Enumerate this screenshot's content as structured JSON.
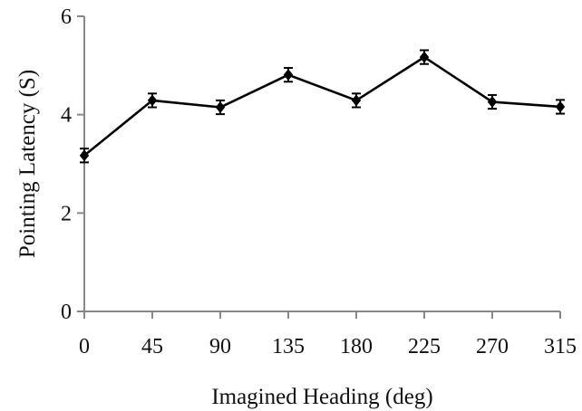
{
  "chart_data": {
    "type": "line",
    "title": "",
    "xlabel": "Imagined Heading (deg)",
    "ylabel": "Pointing Latency (S)",
    "x": [
      0,
      45,
      90,
      135,
      180,
      225,
      270,
      315
    ],
    "xticks": [
      "0",
      "45",
      "90",
      "135",
      "180",
      "225",
      "270",
      "315"
    ],
    "ylim": [
      0,
      6
    ],
    "yticks": [
      "0",
      "2",
      "4",
      "6"
    ],
    "grid": false,
    "legend": "none",
    "series": [
      {
        "values": [
          3.17,
          4.29,
          4.15,
          4.81,
          4.29,
          5.17,
          4.26,
          4.16
        ],
        "error": [
          0.14,
          0.14,
          0.14,
          0.14,
          0.14,
          0.14,
          0.14,
          0.14
        ],
        "color": "#000000",
        "marker": "diamond"
      }
    ]
  }
}
